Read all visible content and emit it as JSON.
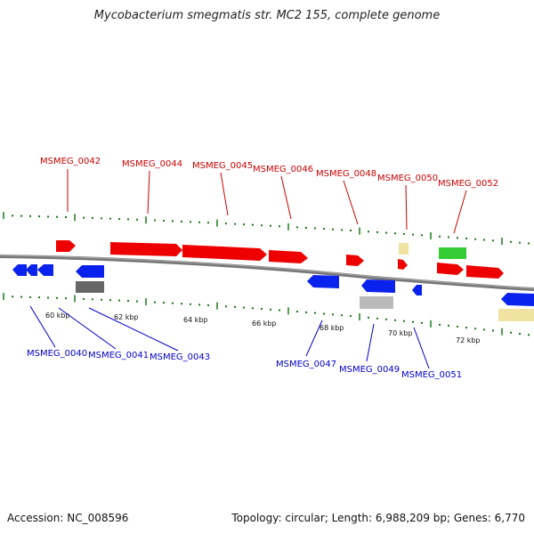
{
  "title": "Mycobacterium smegmatis str. MC2 155, complete genome",
  "footer": {
    "accession": "Accession: NC_008596",
    "summary": "Topology: circular; Length: 6,988,209 bp; Genes: 6,770"
  },
  "colors": {
    "forward_gene": "#ee0000",
    "reverse_gene": "#0a22ee",
    "forward_label": "#cc0000",
    "reverse_label": "#0000cc",
    "backbone": "#777777",
    "tick": "#1a7a1a",
    "rna_pale": "#f0e2a0",
    "rna_green": "#33cc33",
    "pseudo_dark": "#666666",
    "pseudo_light": "#bbbbbb"
  },
  "forward_labels": [
    "MSMEG_0042",
    "MSMEG_0044",
    "MSMEG_0045",
    "MSMEG_0046",
    "MSMEG_0048",
    "MSMEG_0050",
    "MSMEG_0052"
  ],
  "reverse_labels": [
    "MSMEG_0040",
    "MSMEG_0041",
    "MSMEG_0043",
    "MSMEG_0047",
    "MSMEG_0049",
    "MSMEG_0051"
  ],
  "kbp_labels": [
    "60 kbp",
    "62 kbp",
    "64 kbp",
    "66 kbp",
    "68 kbp",
    "70 kbp",
    "72 kbp"
  ]
}
